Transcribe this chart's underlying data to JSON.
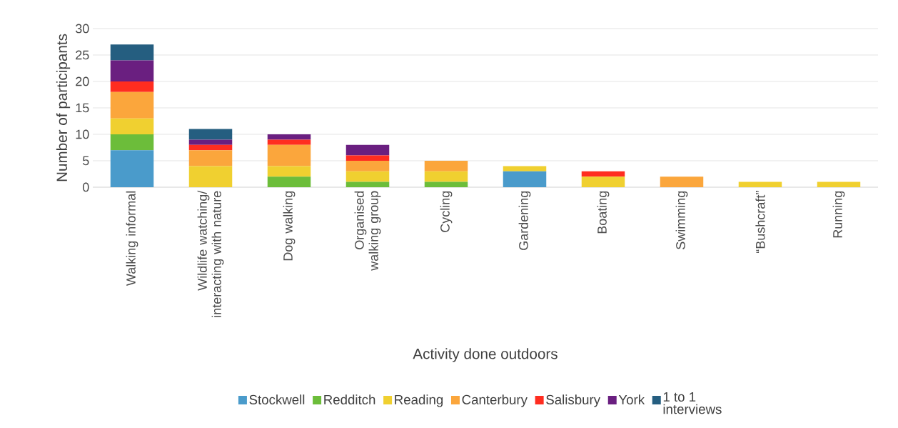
{
  "chart_data": {
    "type": "bar",
    "stacked": true,
    "xlabel": "Activity done outdoors",
    "ylabel": "Number of participants",
    "categories": [
      "Walking informal",
      "Wildlife watching/ interacting with nature",
      "Dog walking",
      "Organised walking group",
      "Cycling",
      "Gardening",
      "Boating",
      "Swimming",
      "“Bushcraft”",
      "Running"
    ],
    "series": [
      {
        "name": "Stockwell",
        "color": "#4a9bcb",
        "values": [
          7,
          0,
          0,
          0,
          0,
          3,
          0,
          0,
          0,
          0
        ]
      },
      {
        "name": "Redditch",
        "color": "#6cbd3a",
        "values": [
          3,
          0,
          2,
          1,
          1,
          0,
          0,
          0,
          0,
          0
        ]
      },
      {
        "name": "Reading",
        "color": "#f0d030",
        "values": [
          3,
          4,
          2,
          2,
          2,
          1,
          2,
          0,
          1,
          1
        ]
      },
      {
        "name": "Canterbury",
        "color": "#fba63c",
        "values": [
          5,
          3,
          4,
          2,
          2,
          0,
          0,
          2,
          0,
          0
        ]
      },
      {
        "name": "Salisbury",
        "color": "#ff2d20",
        "values": [
          2,
          1,
          1,
          1,
          0,
          0,
          1,
          0,
          0,
          0
        ]
      },
      {
        "name": "York",
        "color": "#6a1f80",
        "values": [
          4,
          1,
          1,
          2,
          0,
          0,
          0,
          0,
          0,
          0
        ]
      },
      {
        "name": "1 to 1 interviews",
        "color": "#255e80",
        "values": [
          3,
          2,
          0,
          0,
          0,
          0,
          0,
          0,
          0,
          0
        ]
      }
    ],
    "ylim": [
      0,
      30
    ],
    "yticks": [
      0,
      5,
      10,
      15,
      20,
      25,
      30
    ],
    "grid": "y",
    "legend": "bottom"
  }
}
